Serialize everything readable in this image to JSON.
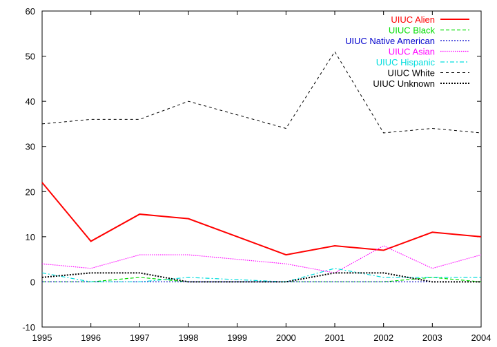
{
  "chart_data": {
    "type": "line",
    "x": [
      1995,
      1996,
      1997,
      1998,
      1999,
      2000,
      2001,
      2002,
      2003,
      2004
    ],
    "xlim": [
      1995,
      2004
    ],
    "ylim": [
      -10,
      60
    ],
    "xticks": [
      "1995",
      "1996",
      "1997",
      "1998",
      "1999",
      "2000",
      "2001",
      "2002",
      "2003",
      "2004"
    ],
    "yticks": [
      "-10",
      "0",
      "10",
      "20",
      "30",
      "40",
      "50",
      "60"
    ],
    "legend_position": "top-right",
    "grid": false,
    "series": [
      {
        "name": "UIUC Alien",
        "color": "#ff0000",
        "dash": "solid",
        "width": 2,
        "values": [
          22,
          9,
          15,
          14,
          10,
          6,
          8,
          7,
          11,
          10
        ]
      },
      {
        "name": "UIUC Black",
        "color": "#00dd00",
        "dash": "dashed",
        "width": 1.2,
        "values": [
          0,
          0,
          1,
          0,
          0,
          0,
          0,
          0,
          1,
          0
        ]
      },
      {
        "name": "UIUC Native American",
        "color": "#0000cc",
        "dash": "dotted",
        "width": 1.2,
        "values": [
          0,
          0,
          0,
          0,
          0,
          0,
          0,
          0,
          0,
          0
        ]
      },
      {
        "name": "UIUC Asian",
        "color": "#ff00ff",
        "dash": "dotted-fine",
        "width": 1.2,
        "values": [
          4,
          3,
          6,
          6,
          5,
          4,
          2,
          8,
          3,
          6
        ]
      },
      {
        "name": "UIUC Hispanic",
        "color": "#00dddd",
        "dash": "dashdot",
        "width": 1.2,
        "values": [
          2,
          0,
          0,
          1,
          0.5,
          0,
          3,
          1,
          1,
          1
        ]
      },
      {
        "name": "UIUC White",
        "color": "#000000",
        "dash": "dashed-thin",
        "width": 1,
        "values": [
          35,
          36,
          36,
          40,
          37,
          34,
          51,
          33,
          34,
          33
        ]
      },
      {
        "name": "UIUC Unknown",
        "color": "#000000",
        "dash": "dotted-bold",
        "width": 2,
        "values": [
          1,
          2,
          2,
          0,
          0,
          0,
          2,
          2,
          0,
          0
        ]
      }
    ]
  }
}
